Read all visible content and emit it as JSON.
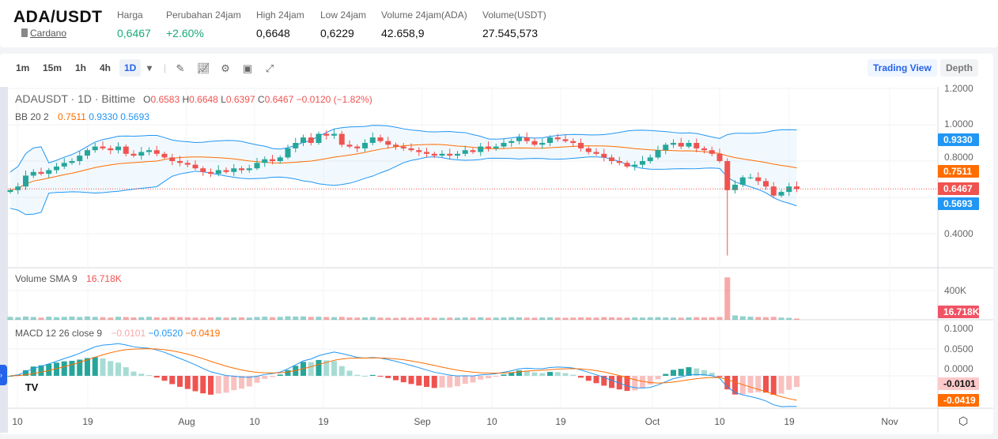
{
  "header": {
    "pair": "ADA/USDT",
    "name": "Cardano",
    "stats": [
      {
        "label": "Harga",
        "value": "0,6467",
        "green": true
      },
      {
        "label": "Perubahan 24jam",
        "value": "+2.60%",
        "green": true
      },
      {
        "label": "High 24jam",
        "value": "0,6648"
      },
      {
        "label": "Low 24jam",
        "value": "0,6229"
      },
      {
        "label": "Volume 24jam(ADA)",
        "value": "42.658,9"
      },
      {
        "label": "Volume(USDT)",
        "value": "27.545,573"
      }
    ]
  },
  "toolbar": {
    "timeframes": [
      "1m",
      "15m",
      "1h",
      "4h",
      "1D"
    ],
    "active": "1D",
    "icons": [
      "draw-icon",
      "indicator-icon",
      "settings-icon",
      "save-icon",
      "fullscreen-icon"
    ],
    "trading_view": "Trading View",
    "depth": "Depth"
  },
  "legend": {
    "symbol": "ADAUSDT · 1D · Bittime",
    "o": "0.6583",
    "h": "0.6648",
    "l": "0.6397",
    "c": "0.6467",
    "chg": "−0.0120 (−1.82%)",
    "bb_label": "BB 20 2",
    "bb_mid": "0.7511",
    "bb_up": "0.9330",
    "bb_lo": "0.5693",
    "vol_label": "Volume SMA 9",
    "vol_val": "16.718K",
    "macd_label": "MACD 12 26 close 9",
    "macd_hist": "−0.0101",
    "macd_line": "−0.0520",
    "macd_signal": "−0.0419"
  },
  "colors": {
    "up": "#26a69a",
    "down": "#ef5350",
    "bb_mid": "#ff6d00",
    "bb_band": "#2196f3",
    "macd": "#2196f3",
    "signal": "#ff6d00",
    "accent": "#2563eb"
  },
  "chart_data": {
    "type": "candlestick",
    "first_date": "Jul 9",
    "last_date": "Oct 19",
    "price_ticks": [
      "1.2000",
      "1.0000",
      "0.8000",
      "0.4000"
    ],
    "price_range": [
      0.1,
      1.25
    ],
    "volume_ticks": [
      "400K"
    ],
    "macd_ticks": [
      "0.1000",
      "0.0500",
      "0.0000"
    ],
    "x_ticks": [
      "10",
      "19",
      "Aug",
      "10",
      "19",
      "Sep",
      "10",
      "19",
      "Oct",
      "10",
      "19",
      "Nov"
    ],
    "labels": {
      "bb_up": "0.9330",
      "bb_mid": "0.7511",
      "last": "0.6467",
      "bb_lo": "0.5693",
      "vol": "16.718K",
      "hist": "-0.0101",
      "signal": "-0.0419"
    },
    "close": [
      0.64,
      0.66,
      0.72,
      0.74,
      0.73,
      0.75,
      0.77,
      0.79,
      0.8,
      0.83,
      0.86,
      0.88,
      0.87,
      0.86,
      0.88,
      0.84,
      0.83,
      0.85,
      0.86,
      0.84,
      0.82,
      0.8,
      0.79,
      0.78,
      0.76,
      0.74,
      0.73,
      0.75,
      0.74,
      0.76,
      0.75,
      0.76,
      0.79,
      0.81,
      0.8,
      0.82,
      0.87,
      0.9,
      0.93,
      0.9,
      0.95,
      0.94,
      0.95,
      0.89,
      0.88,
      0.87,
      0.9,
      0.93,
      0.91,
      0.89,
      0.88,
      0.87,
      0.86,
      0.85,
      0.84,
      0.83,
      0.84,
      0.83,
      0.84,
      0.86,
      0.85,
      0.88,
      0.87,
      0.88,
      0.9,
      0.91,
      0.93,
      0.91,
      0.89,
      0.9,
      0.93,
      0.92,
      0.91,
      0.9,
      0.87,
      0.85,
      0.84,
      0.82,
      0.8,
      0.79,
      0.77,
      0.78,
      0.8,
      0.82,
      0.86,
      0.89,
      0.9,
      0.88,
      0.9,
      0.87,
      0.86,
      0.84,
      0.8,
      0.64,
      0.67,
      0.71,
      0.71,
      0.69,
      0.66,
      0.61,
      0.63,
      0.66,
      0.6467
    ],
    "spike": {
      "index": 93,
      "low": 0.28
    },
    "volume_k": [
      40,
      35,
      45,
      38,
      30,
      42,
      36,
      40,
      44,
      38,
      46,
      40,
      35,
      30,
      42,
      38,
      33,
      36,
      40,
      34,
      30,
      38,
      36,
      34,
      30,
      28,
      33,
      36,
      30,
      32,
      34,
      30,
      38,
      42,
      36,
      40,
      48,
      44,
      46,
      40,
      42,
      38,
      36,
      40,
      32,
      30,
      34,
      38,
      30,
      28,
      26,
      30,
      28,
      30,
      32,
      28,
      26,
      30,
      28,
      32,
      30,
      34,
      28,
      30,
      32,
      36,
      34,
      30,
      28,
      32,
      34,
      30,
      28,
      30,
      34,
      32,
      30,
      36,
      34,
      30,
      28,
      32,
      30,
      34,
      36,
      32,
      30,
      28,
      34,
      36,
      32,
      34,
      38,
      580,
      60,
      48,
      42,
      38,
      36,
      40,
      30,
      26,
      16.7
    ]
  }
}
